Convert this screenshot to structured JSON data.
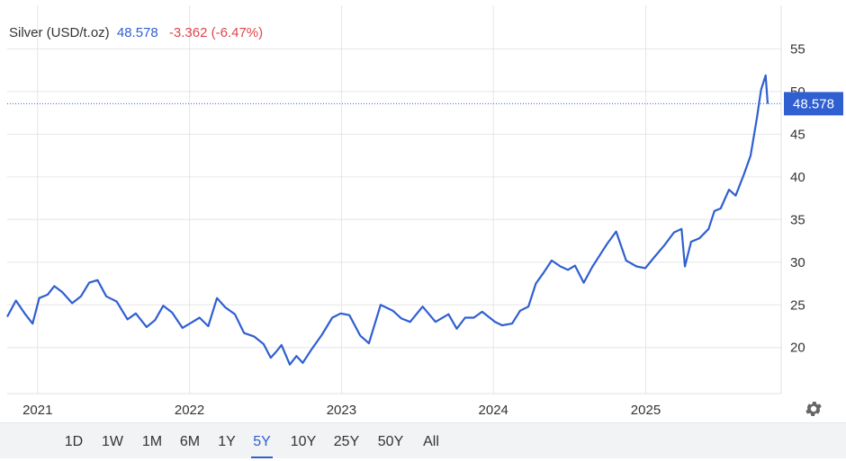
{
  "legend": {
    "symbol": "Silver (USD/t.oz)",
    "price": "48.578",
    "change": "-3.362 (-6.47%)"
  },
  "price_badge": "48.578",
  "ranges": [
    "1D",
    "1W",
    "1M",
    "6M",
    "1Y",
    "5Y",
    "10Y",
    "25Y",
    "50Y",
    "All"
  ],
  "active_range": "5Y",
  "colors": {
    "line": "#2f5fd1",
    "badge": "#2f5fd1",
    "grid": "#e6e6e6",
    "change": "#e0454a"
  },
  "icons": {
    "settings": "gear-icon"
  },
  "chart_data": {
    "type": "line",
    "title": "Silver (USD/t.oz)",
    "ylim": [
      14.6,
      60.1
    ],
    "y_ticks": [
      20,
      25,
      30,
      35,
      40,
      45,
      50,
      55
    ],
    "x_ticks": [
      "2021",
      "2022",
      "2023",
      "2024",
      "2025"
    ],
    "last_value": 48.578,
    "grid": true,
    "series": [
      {
        "name": "Silver",
        "x": [
          "2020-10-20",
          "2020-11-10",
          "2020-12-01",
          "2020-12-20",
          "2021-01-05",
          "2021-01-25",
          "2021-02-10",
          "2021-03-01",
          "2021-03-25",
          "2021-04-15",
          "2021-05-05",
          "2021-05-25",
          "2021-06-15",
          "2021-07-10",
          "2021-08-05",
          "2021-08-25",
          "2021-09-20",
          "2021-10-10",
          "2021-10-30",
          "2021-11-20",
          "2021-12-15",
          "2022-01-05",
          "2022-01-25",
          "2022-02-15",
          "2022-03-08",
          "2022-03-28",
          "2022-04-20",
          "2022-05-12",
          "2022-06-05",
          "2022-06-28",
          "2022-07-15",
          "2022-07-28",
          "2022-08-10",
          "2022-08-30",
          "2022-09-15",
          "2022-09-30",
          "2022-10-20",
          "2022-11-15",
          "2022-12-10",
          "2022-12-30",
          "2023-01-20",
          "2023-02-15",
          "2023-03-08",
          "2023-04-05",
          "2023-05-05",
          "2023-05-25",
          "2023-06-15",
          "2023-07-15",
          "2023-08-15",
          "2023-09-15",
          "2023-10-05",
          "2023-10-25",
          "2023-11-15",
          "2023-12-05",
          "2024-01-05",
          "2024-01-22",
          "2024-02-15",
          "2024-03-05",
          "2024-03-25",
          "2024-04-12",
          "2024-05-01",
          "2024-05-20",
          "2024-06-10",
          "2024-06-28",
          "2024-07-15",
          "2024-08-05",
          "2024-08-25",
          "2024-09-15",
          "2024-10-01",
          "2024-10-22",
          "2024-11-15",
          "2024-12-10",
          "2024-12-31",
          "2025-01-20",
          "2025-02-15",
          "2025-03-10",
          "2025-03-28",
          "2025-04-05",
          "2025-04-20",
          "2025-05-10",
          "2025-06-01",
          "2025-06-15",
          "2025-06-30",
          "2025-07-20",
          "2025-08-05",
          "2025-08-25",
          "2025-09-10",
          "2025-09-25",
          "2025-10-05",
          "2025-10-16",
          "2025-10-21"
        ],
        "y": [
          23.6,
          25.5,
          24.0,
          22.8,
          25.8,
          26.2,
          27.2,
          26.5,
          25.2,
          26.0,
          27.6,
          27.9,
          26.0,
          25.4,
          23.3,
          24.0,
          22.4,
          23.2,
          24.9,
          24.1,
          22.3,
          22.9,
          23.5,
          22.5,
          25.8,
          24.7,
          23.9,
          21.7,
          21.3,
          20.4,
          18.8,
          19.5,
          20.3,
          18.0,
          19.0,
          18.2,
          19.7,
          21.5,
          23.5,
          24.0,
          23.8,
          21.4,
          20.5,
          25.0,
          24.3,
          23.4,
          23.0,
          24.8,
          23.0,
          23.9,
          22.2,
          23.5,
          23.5,
          24.2,
          23.0,
          22.6,
          22.8,
          24.3,
          24.8,
          27.5,
          28.8,
          30.2,
          29.5,
          29.1,
          29.6,
          27.6,
          29.4,
          31.0,
          32.2,
          33.6,
          30.2,
          29.5,
          29.3,
          30.5,
          32.0,
          33.5,
          33.9,
          29.5,
          32.4,
          32.8,
          33.9,
          36.0,
          36.3,
          38.5,
          37.8,
          40.3,
          42.5,
          46.9,
          50.2,
          51.9,
          48.578
        ]
      }
    ]
  }
}
